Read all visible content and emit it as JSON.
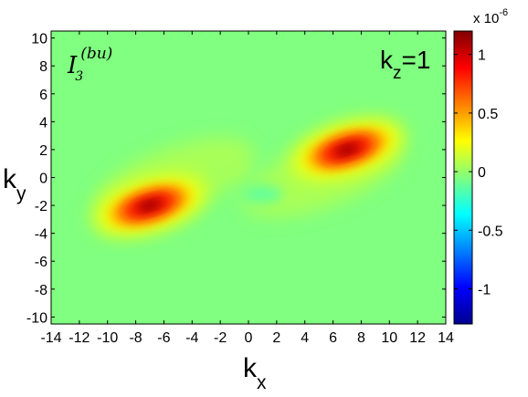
{
  "chart_data": {
    "type": "heatmap",
    "xlabel": "k",
    "xlabel_sub": "x",
    "ylabel": "k",
    "ylabel_sub": "y",
    "xlim": [
      -14,
      14
    ],
    "ylim": [
      -10.5,
      10.5
    ],
    "xticks": [
      -14,
      -12,
      -10,
      -8,
      -6,
      -4,
      -2,
      0,
      2,
      4,
      6,
      8,
      10,
      12,
      14
    ],
    "yticks": [
      -10,
      -8,
      -6,
      -4,
      -2,
      0,
      2,
      4,
      6,
      8,
      10
    ],
    "grid": false,
    "annotation_left": {
      "base": "I",
      "sub": "3",
      "sup": "(bu)"
    },
    "annotation_right": {
      "base": "k",
      "sub": "z",
      "rest": "=1"
    },
    "colorbar": {
      "range": [
        -1.3e-06,
        1.2e-06
      ],
      "ticks": [
        -1,
        -0.5,
        0,
        0.5,
        1
      ],
      "multiplier_base": "x 10",
      "multiplier_exp": "-6",
      "colormap": "jet"
    },
    "peaks": [
      {
        "kx": 7,
        "ky": 2,
        "value": 1.15e-06
      },
      {
        "kx": -7,
        "ky": -2,
        "value": 1.15e-06
      }
    ],
    "minor_features": [
      {
        "kx": 1,
        "ky": -1.2,
        "value": -5e-08
      },
      {
        "kx": -1.5,
        "ky": 0.6,
        "value": 5e-08
      }
    ]
  }
}
